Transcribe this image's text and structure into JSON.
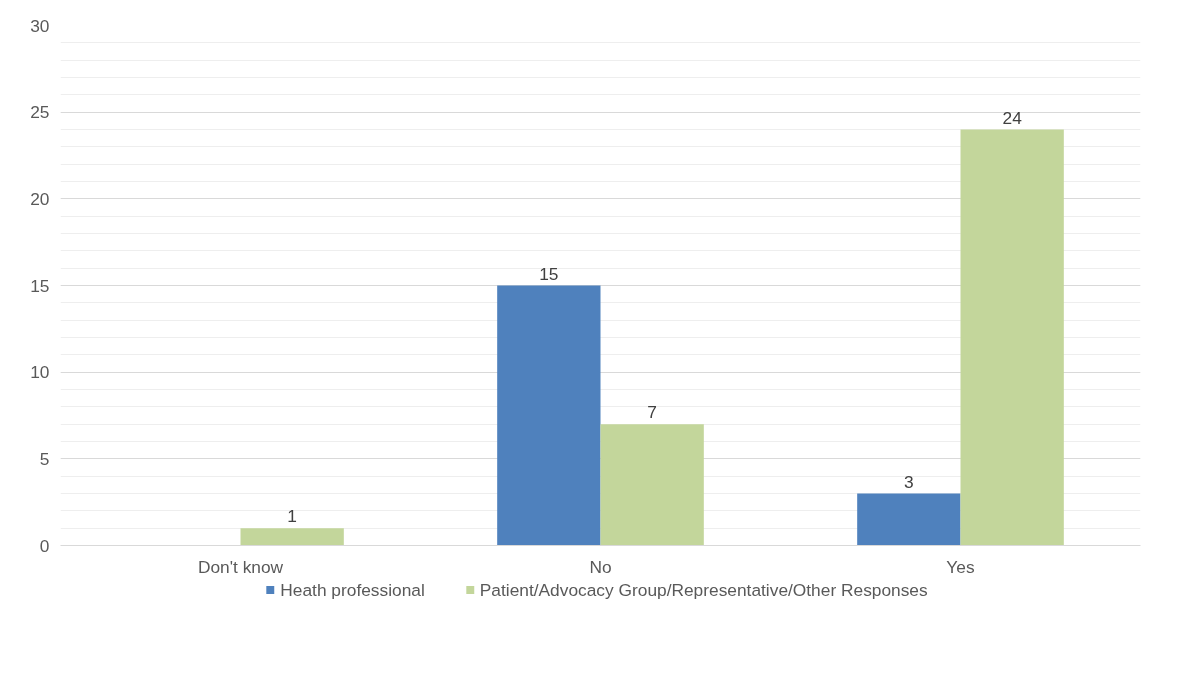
{
  "chart_data": {
    "type": "bar",
    "categories": [
      "Don't know",
      "No",
      "Yes"
    ],
    "series": [
      {
        "name": "Heath professional",
        "color": "#4f81bd",
        "values": [
          null,
          15,
          3
        ]
      },
      {
        "name": "Patient/Advocacy Group/Representative/Other Responses",
        "color": "#c3d69b",
        "values": [
          1,
          7,
          24
        ]
      }
    ],
    "ylim": [
      0,
      30
    ],
    "yticks": [
      0,
      5,
      10,
      15,
      20,
      25,
      30
    ],
    "grid": "y",
    "data_labels": true,
    "legend": "bottom"
  }
}
